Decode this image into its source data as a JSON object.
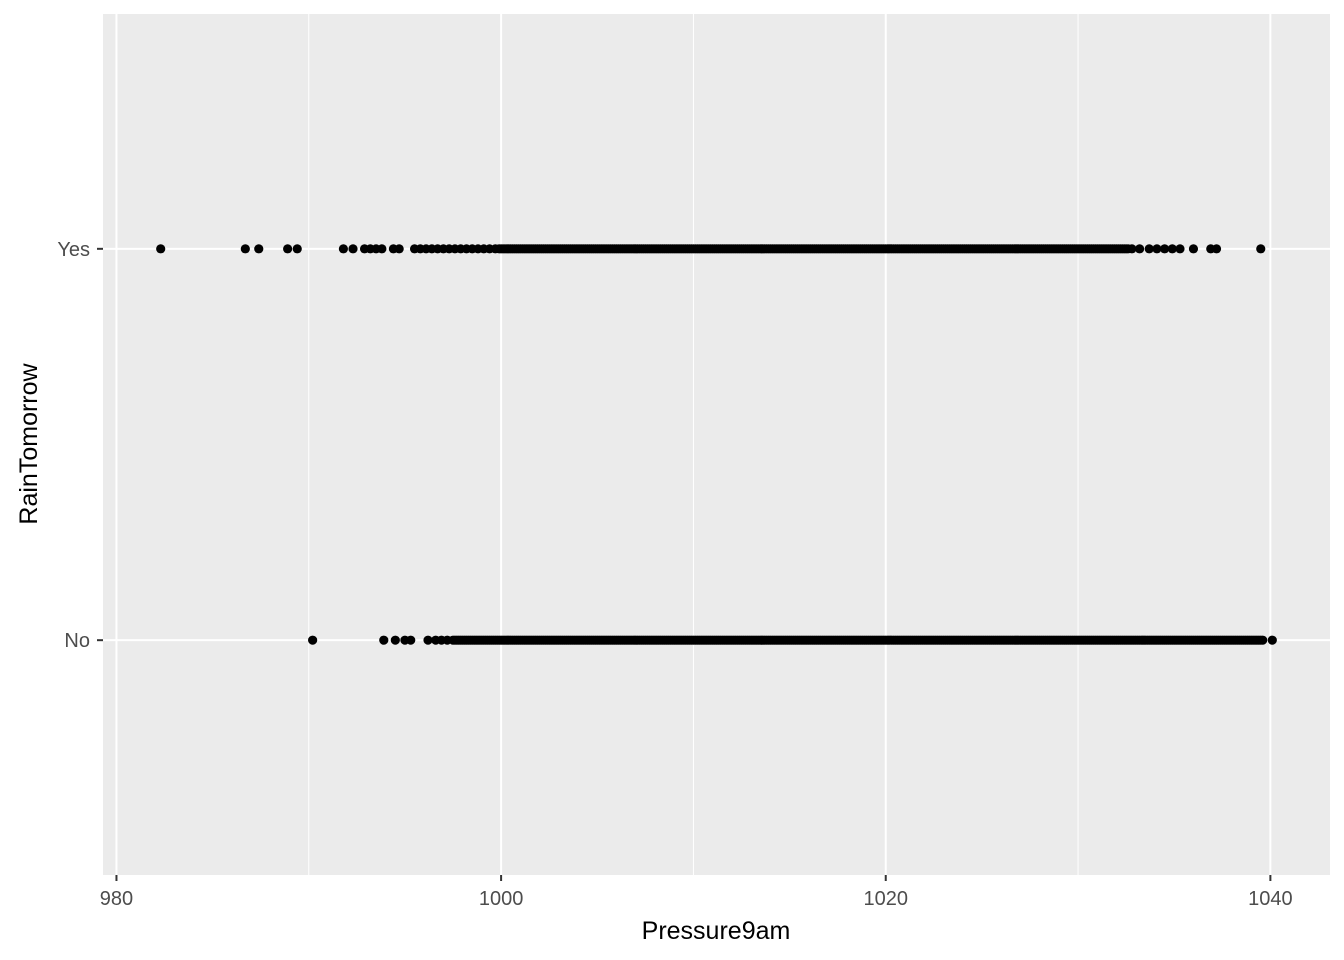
{
  "chart_data": {
    "type": "scatter",
    "title": "",
    "xlabel": "Pressure9am",
    "ylabel": "RainTomorrow",
    "xlim": [
      979.3,
      1043.1
    ],
    "x_ticks": [
      980,
      1000,
      1020,
      1040
    ],
    "x_tick_labels": [
      "980",
      "1000",
      "1020",
      "1040"
    ],
    "categories": [
      "No",
      "Yes"
    ],
    "grid": true,
    "legend": "none",
    "colors": {
      "panel_background": "#ebebeb",
      "grid": "#ffffff",
      "point": "#000000",
      "tick_text": "#4d4d4d",
      "tick_mark": "#333333"
    },
    "series": [
      {
        "category": "Yes",
        "values": [
          982.3,
          986.7,
          987.4,
          988.9,
          989.4,
          991.8,
          992.3,
          992.9,
          993.2,
          993.5,
          993.8,
          994.4,
          994.7,
          995.5,
          995.8,
          996.1,
          996.4,
          996.7,
          997.0,
          997.3,
          997.6,
          997.9,
          998.2,
          998.5,
          998.8,
          999.1,
          999.4,
          999.7,
          1032.8,
          1033.2,
          1033.7,
          1034.1,
          1034.5,
          1034.9,
          1035.3,
          1036.0,
          1036.9,
          1037.2,
          1039.5
        ],
        "dense_ranges": [
          [
            999.9,
            1032.6
          ]
        ]
      },
      {
        "category": "No",
        "values": [
          990.2,
          993.9,
          994.5,
          995.0,
          995.3,
          996.2,
          996.6,
          996.9,
          997.2
        ],
        "dense_ranges": [
          [
            997.5,
            1039.6
          ]
        ],
        "values_end": [
          1040.1
        ]
      }
    ]
  }
}
